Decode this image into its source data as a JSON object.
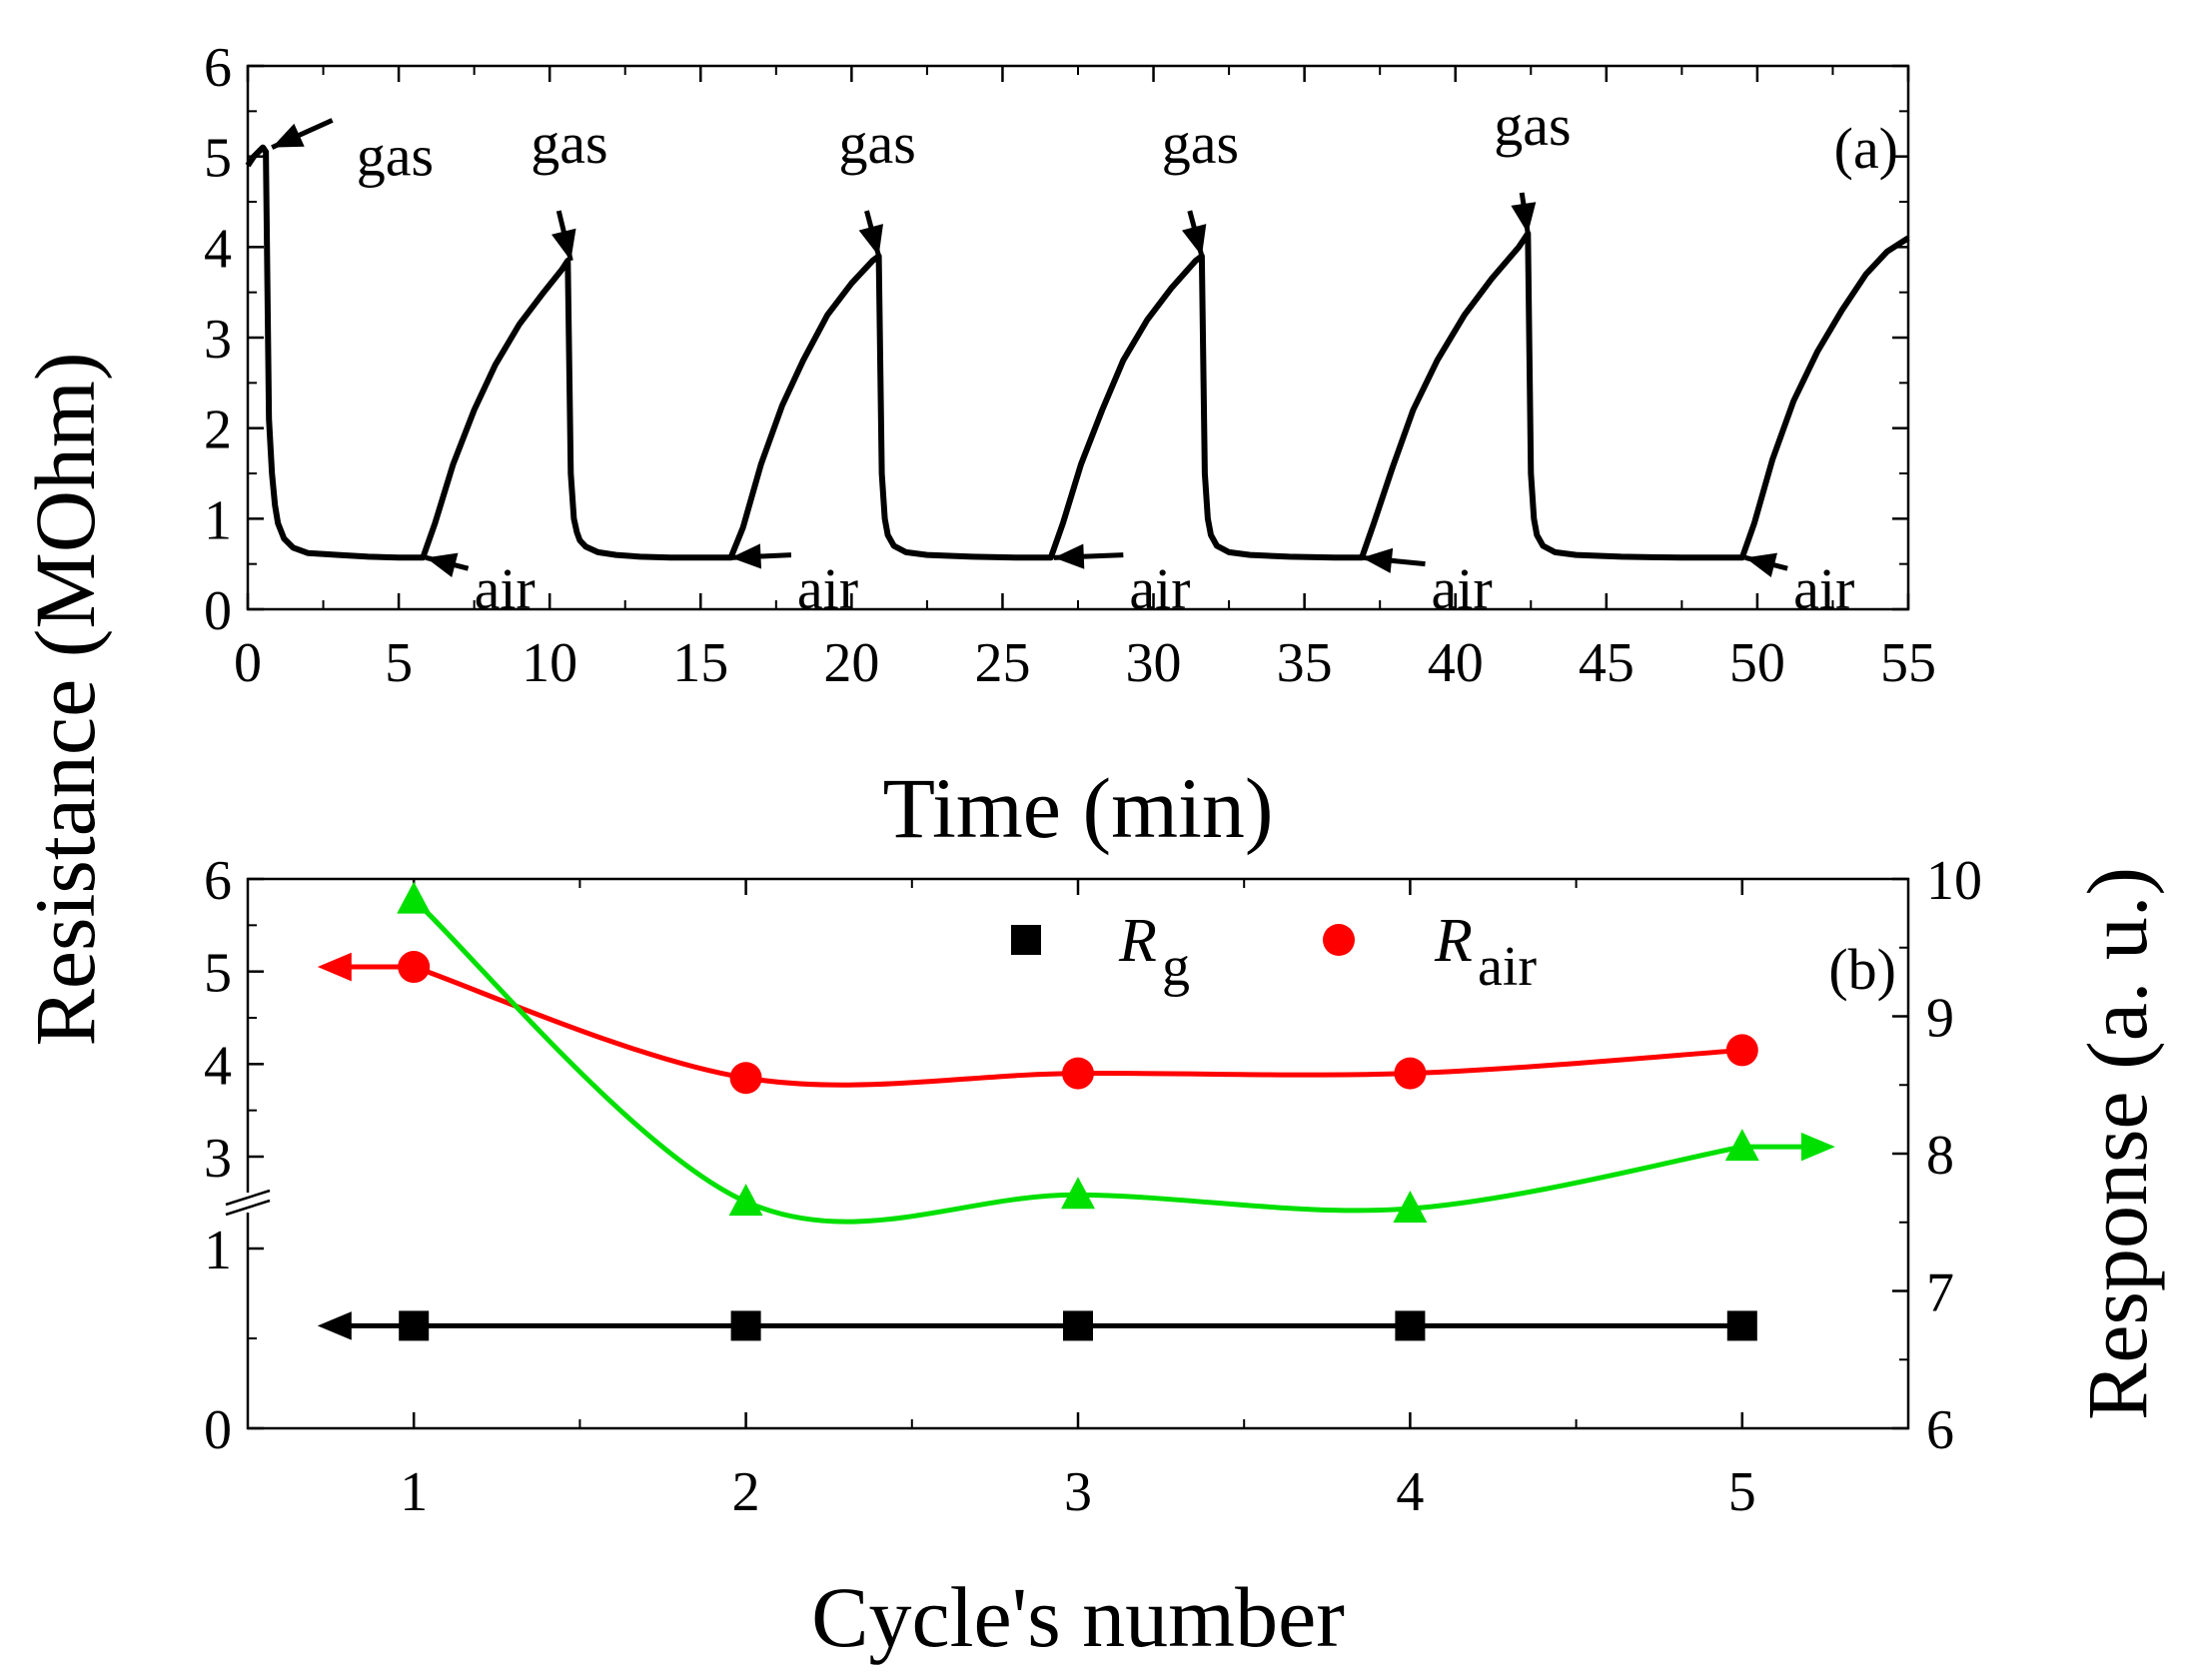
{
  "chart_data": [
    {
      "id": "a",
      "type": "line",
      "panel_label": "(a)",
      "xlabel": "Time (min)",
      "ylabel": "Resistance (MOhm)",
      "xlim": [
        0,
        55
      ],
      "ylim": [
        0,
        6
      ],
      "xticks": [
        "0",
        "5",
        "10",
        "15",
        "20",
        "25",
        "30",
        "35",
        "40",
        "45",
        "50",
        "55"
      ],
      "yticks": [
        "0",
        "1",
        "2",
        "3",
        "4",
        "5",
        "6"
      ],
      "series": [
        {
          "name": "resistance",
          "color": "#000000",
          "x": [
            0,
            0.2,
            0.5,
            0.6,
            0.7,
            0.8,
            0.9,
            1.0,
            1.2,
            1.5,
            2,
            3,
            4,
            5,
            5.8,
            6.2,
            6.8,
            7.5,
            8.2,
            9.0,
            9.8,
            10.4,
            10.6,
            10.7,
            10.8,
            10.9,
            11.0,
            11.2,
            11.6,
            12.2,
            13,
            14,
            15,
            16,
            16.4,
            17.0,
            17.7,
            18.4,
            19.2,
            20.0,
            20.7,
            20.9,
            21.0,
            21.1,
            21.2,
            21.4,
            21.8,
            22.5,
            24,
            25.5,
            26.6,
            27.0,
            27.6,
            28.3,
            29.0,
            29.8,
            30.6,
            31.4,
            31.6,
            31.7,
            31.8,
            31.9,
            32.1,
            32.5,
            33.2,
            34.5,
            36,
            36.9,
            37.3,
            37.9,
            38.6,
            39.4,
            40.3,
            41.2,
            42.1,
            42.4,
            42.5,
            42.6,
            42.7,
            42.9,
            43.3,
            44,
            45.5,
            47.5,
            49.5,
            49.9,
            50.5,
            51.2,
            52,
            52.8,
            53.6,
            54.3,
            55
          ],
          "y": [
            4.9,
            5.0,
            5.1,
            5.05,
            2.1,
            1.5,
            1.15,
            0.95,
            0.78,
            0.68,
            0.62,
            0.6,
            0.58,
            0.57,
            0.57,
            0.95,
            1.6,
            2.2,
            2.7,
            3.15,
            3.5,
            3.75,
            3.85,
            1.5,
            1.0,
            0.85,
            0.76,
            0.69,
            0.63,
            0.6,
            0.58,
            0.57,
            0.57,
            0.57,
            0.9,
            1.6,
            2.25,
            2.75,
            3.25,
            3.6,
            3.85,
            3.9,
            1.5,
            1.0,
            0.82,
            0.7,
            0.63,
            0.6,
            0.58,
            0.57,
            0.57,
            0.95,
            1.6,
            2.2,
            2.75,
            3.2,
            3.55,
            3.85,
            3.9,
            1.5,
            1.0,
            0.82,
            0.7,
            0.63,
            0.6,
            0.58,
            0.57,
            0.57,
            0.95,
            1.55,
            2.2,
            2.75,
            3.25,
            3.65,
            4.0,
            4.15,
            1.5,
            1.0,
            0.82,
            0.7,
            0.63,
            0.6,
            0.58,
            0.57,
            0.57,
            0.95,
            1.65,
            2.3,
            2.85,
            3.3,
            3.7,
            3.95,
            4.1
          ]
        }
      ],
      "annotations": [
        {
          "text": "gas",
          "tip": [
            0.8,
            5.1
          ],
          "tail": [
            2.8,
            5.4
          ]
        },
        {
          "text": "gas",
          "tip": [
            10.7,
            3.85
          ],
          "tail": [
            10.3,
            4.4
          ]
        },
        {
          "text": "gas",
          "tip": [
            20.9,
            3.9
          ],
          "tail": [
            20.5,
            4.4
          ]
        },
        {
          "text": "gas",
          "tip": [
            31.6,
            3.9
          ],
          "tail": [
            31.2,
            4.4
          ]
        },
        {
          "text": "gas",
          "tip": [
            42.4,
            4.15
          ],
          "tail": [
            42.2,
            4.6
          ]
        },
        {
          "text": "air",
          "tip": [
            5.9,
            0.57
          ],
          "tail": [
            7.3,
            0.45
          ]
        },
        {
          "text": "air",
          "tip": [
            16.0,
            0.57
          ],
          "tail": [
            18.0,
            0.6
          ]
        },
        {
          "text": "air",
          "tip": [
            26.7,
            0.57
          ],
          "tail": [
            29.0,
            0.6
          ]
        },
        {
          "text": "air",
          "tip": [
            36.9,
            0.57
          ],
          "tail": [
            39.0,
            0.5
          ]
        },
        {
          "text": "air",
          "tip": [
            49.6,
            0.57
          ],
          "tail": [
            51.0,
            0.45
          ]
        }
      ]
    },
    {
      "id": "b",
      "type": "line",
      "panel_label": "(b)",
      "xlabel": "Cycle's number",
      "ylabel": "Resistance (MOhm)",
      "y2label": "Response (a. u.)",
      "xlim": [
        0.5,
        5.5
      ],
      "xticks": [
        "1",
        "2",
        "3",
        "4",
        "5"
      ],
      "yticks_left": [
        "0",
        "1",
        "3",
        "4",
        "5",
        "6"
      ],
      "ylim_right": [
        6,
        10
      ],
      "yticks_right": [
        "6",
        "7",
        "8",
        "9",
        "10"
      ],
      "categories": [
        1,
        2,
        3,
        4,
        5
      ],
      "series": [
        {
          "name": "R",
          "subscript": "g",
          "axis": "left",
          "marker": "square",
          "color": "#000000",
          "values": [
            0.57,
            0.57,
            0.57,
            0.57,
            0.57
          ]
        },
        {
          "name": "R",
          "subscript": "air",
          "axis": "left",
          "marker": "circle",
          "color": "#ff0000",
          "values": [
            5.05,
            3.85,
            3.9,
            3.9,
            4.15
          ]
        },
        {
          "name": "Response",
          "axis": "right",
          "marker": "triangle",
          "color": "#00e000",
          "values": [
            9.85,
            7.65,
            7.7,
            7.6,
            8.05
          ]
        }
      ]
    }
  ]
}
